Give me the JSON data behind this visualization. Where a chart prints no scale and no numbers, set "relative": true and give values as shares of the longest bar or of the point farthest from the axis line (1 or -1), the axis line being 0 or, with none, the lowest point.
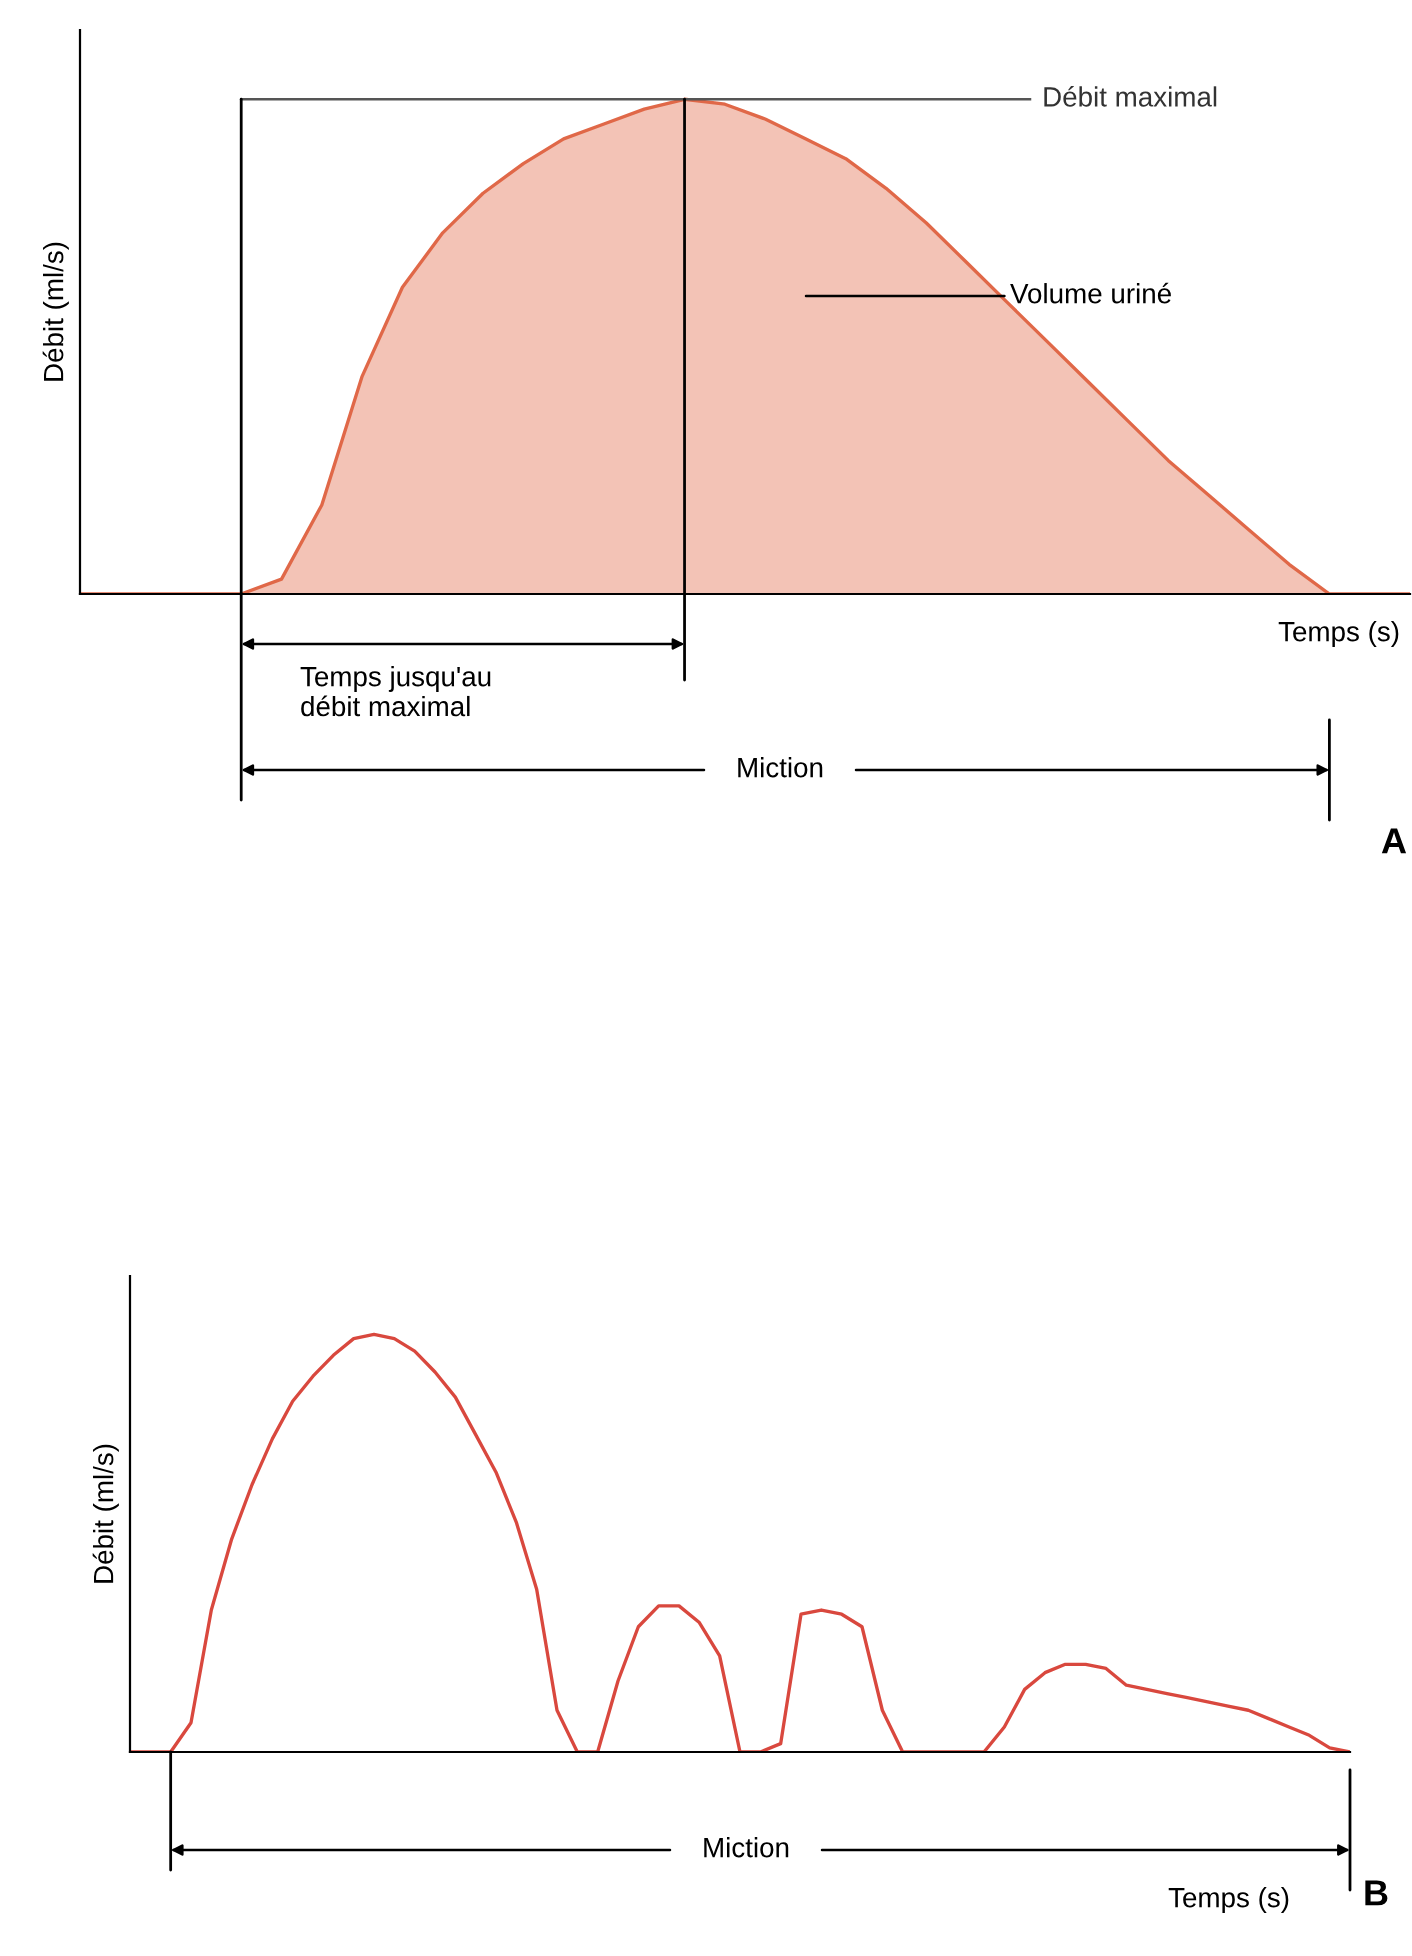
{
  "chart_data": [
    {
      "type": "area",
      "title": "A",
      "ylabel": "Débit (ml/s)",
      "relative": true,
      "grid": false,
      "legend": false,
      "tick_labels": false,
      "categories": [
        null,
        null,
        null,
        null,
        null,
        null,
        null,
        null,
        null,
        null,
        null,
        null,
        null,
        null,
        null,
        null,
        null,
        null,
        null,
        null,
        null,
        null,
        null,
        null,
        null,
        null,
        null,
        null,
        null,
        null,
        null,
        null,
        null,
        null
      ],
      "series": [
        {
          "color": "#e06848",
          "values": [
            0,
            0,
            0,
            0,
            0,
            0.03,
            0.18,
            0.44,
            0.62,
            0.73,
            0.81,
            0.87,
            0.92,
            0.95,
            0.98,
            1.0,
            0.99,
            0.96,
            0.92,
            0.88,
            0.82,
            0.75,
            0.67,
            0.59,
            0.51,
            0.43,
            0.35,
            0.27,
            0.2,
            0.13,
            0.06,
            0,
            0,
            0
          ]
        }
      ],
      "ref_lines": [
        {
          "axis": "y",
          "value": 1,
          "label": "Débit maximal"
        }
      ],
      "annotations": [
        "Volume uriné",
        "Temps jusqu'au\ndébit maximal",
        "Miction",
        "Temps (s)"
      ]
    },
    {
      "type": "line",
      "title": "B",
      "ylabel": "Débit (ml/s)",
      "relative": true,
      "grid": false,
      "legend": false,
      "tick_labels": false,
      "categories": [
        null,
        null,
        null,
        null,
        null,
        null,
        null,
        null,
        null,
        null,
        null,
        null,
        null,
        null,
        null,
        null,
        null,
        null,
        null,
        null,
        null,
        null,
        null,
        null,
        null,
        null,
        null,
        null,
        null,
        null,
        null,
        null,
        null,
        null,
        null,
        null,
        null,
        null,
        null,
        null,
        null,
        null,
        null,
        null,
        null,
        null,
        null,
        null,
        null,
        null,
        null,
        null,
        null,
        null,
        null,
        null,
        null,
        null,
        null,
        null,
        null
      ],
      "series": [
        {
          "color": "#d9483e",
          "values": [
            0,
            0,
            0,
            0.07,
            0.34,
            0.51,
            0.64,
            0.75,
            0.84,
            0.9,
            0.95,
            0.99,
            1.0,
            0.99,
            0.96,
            0.91,
            0.85,
            0.76,
            0.67,
            0.55,
            0.39,
            0.1,
            0,
            0,
            0.17,
            0.3,
            0.35,
            0.35,
            0.31,
            0.23,
            0,
            0,
            0.02,
            0.33,
            0.34,
            0.33,
            0.3,
            0.1,
            0,
            0,
            0,
            0,
            0,
            0.06,
            0.15,
            0.19,
            0.21,
            0.21,
            0.2,
            0.16,
            0.15,
            0.14,
            0.13,
            0.12,
            0.11,
            0.1,
            0.08,
            0.06,
            0.04,
            0.01,
            0
          ]
        }
      ],
      "annotations": [
        "Miction",
        "Temps (s)"
      ]
    }
  ]
}
